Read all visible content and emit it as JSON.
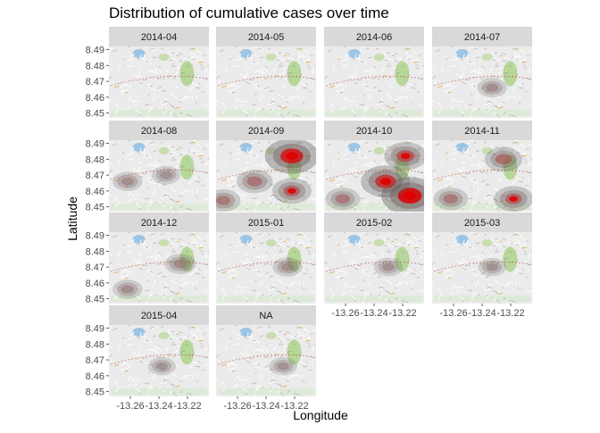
{
  "chart_data": {
    "type": "heatmap",
    "title": "Distribution of cumulative cases over time",
    "xlabel": "Longitude",
    "ylabel": "Latitude",
    "x_ticks": [
      -13.26,
      -13.24,
      -13.22
    ],
    "y_ticks": [
      8.45,
      8.46,
      8.47,
      8.48,
      8.49
    ],
    "x_tick_labels": [
      "-13.26",
      "-13.24",
      "-13.22"
    ],
    "y_tick_labels": [
      "8.45",
      "8.46",
      "8.47",
      "8.48",
      "8.49"
    ],
    "xlim": [
      -13.275,
      -13.205
    ],
    "ylim": [
      8.447,
      8.492
    ],
    "legend": "none",
    "basemap": "street map",
    "density_colors": {
      "low": "#888888",
      "high": "#dd0000"
    },
    "facets": [
      {
        "label": "2014-04",
        "hotspots": []
      },
      {
        "label": "2014-05",
        "hotspots": []
      },
      {
        "label": "2014-06",
        "hotspots": []
      },
      {
        "label": "2014-07",
        "hotspots": [
          {
            "lon": -13.233,
            "lat": 8.466,
            "intensity": 0.15
          }
        ]
      },
      {
        "label": "2014-08",
        "hotspots": [
          {
            "lon": -13.262,
            "lat": 8.466,
            "intensity": 0.15
          },
          {
            "lon": -13.235,
            "lat": 8.47,
            "intensity": 0.12
          }
        ]
      },
      {
        "label": "2014-09",
        "hotspots": [
          {
            "lon": -13.222,
            "lat": 8.482,
            "intensity": 0.9
          },
          {
            "lon": -13.222,
            "lat": 8.46,
            "intensity": 0.45
          },
          {
            "lon": -13.248,
            "lat": 8.466,
            "intensity": 0.35
          },
          {
            "lon": -13.27,
            "lat": 8.454,
            "intensity": 0.3
          }
        ]
      },
      {
        "label": "2014-10",
        "hotspots": [
          {
            "lon": -13.215,
            "lat": 8.457,
            "intensity": 1.0
          },
          {
            "lon": -13.232,
            "lat": 8.466,
            "intensity": 0.75
          },
          {
            "lon": -13.218,
            "lat": 8.482,
            "intensity": 0.55
          },
          {
            "lon": -13.262,
            "lat": 8.455,
            "intensity": 0.3
          }
        ]
      },
      {
        "label": "2014-11",
        "hotspots": [
          {
            "lon": -13.218,
            "lat": 8.455,
            "intensity": 0.45
          },
          {
            "lon": -13.225,
            "lat": 8.48,
            "intensity": 0.4
          },
          {
            "lon": -13.262,
            "lat": 8.455,
            "intensity": 0.3
          }
        ]
      },
      {
        "label": "2014-12",
        "hotspots": [
          {
            "lon": -13.225,
            "lat": 8.472,
            "intensity": 0.2
          },
          {
            "lon": -13.262,
            "lat": 8.456,
            "intensity": 0.15
          }
        ]
      },
      {
        "label": "2015-01",
        "hotspots": [
          {
            "lon": -13.225,
            "lat": 8.47,
            "intensity": 0.15
          }
        ]
      },
      {
        "label": "2015-02",
        "hotspots": [
          {
            "lon": -13.23,
            "lat": 8.47,
            "intensity": 0.12
          }
        ]
      },
      {
        "label": "2015-03",
        "hotspots": [
          {
            "lon": -13.233,
            "lat": 8.47,
            "intensity": 0.1
          }
        ]
      },
      {
        "label": "2015-04",
        "hotspots": [
          {
            "lon": -13.238,
            "lat": 8.466,
            "intensity": 0.1
          }
        ]
      },
      {
        "label": "NA",
        "hotspots": [
          {
            "lon": -13.228,
            "lat": 8.466,
            "intensity": 0.1
          }
        ]
      }
    ]
  }
}
